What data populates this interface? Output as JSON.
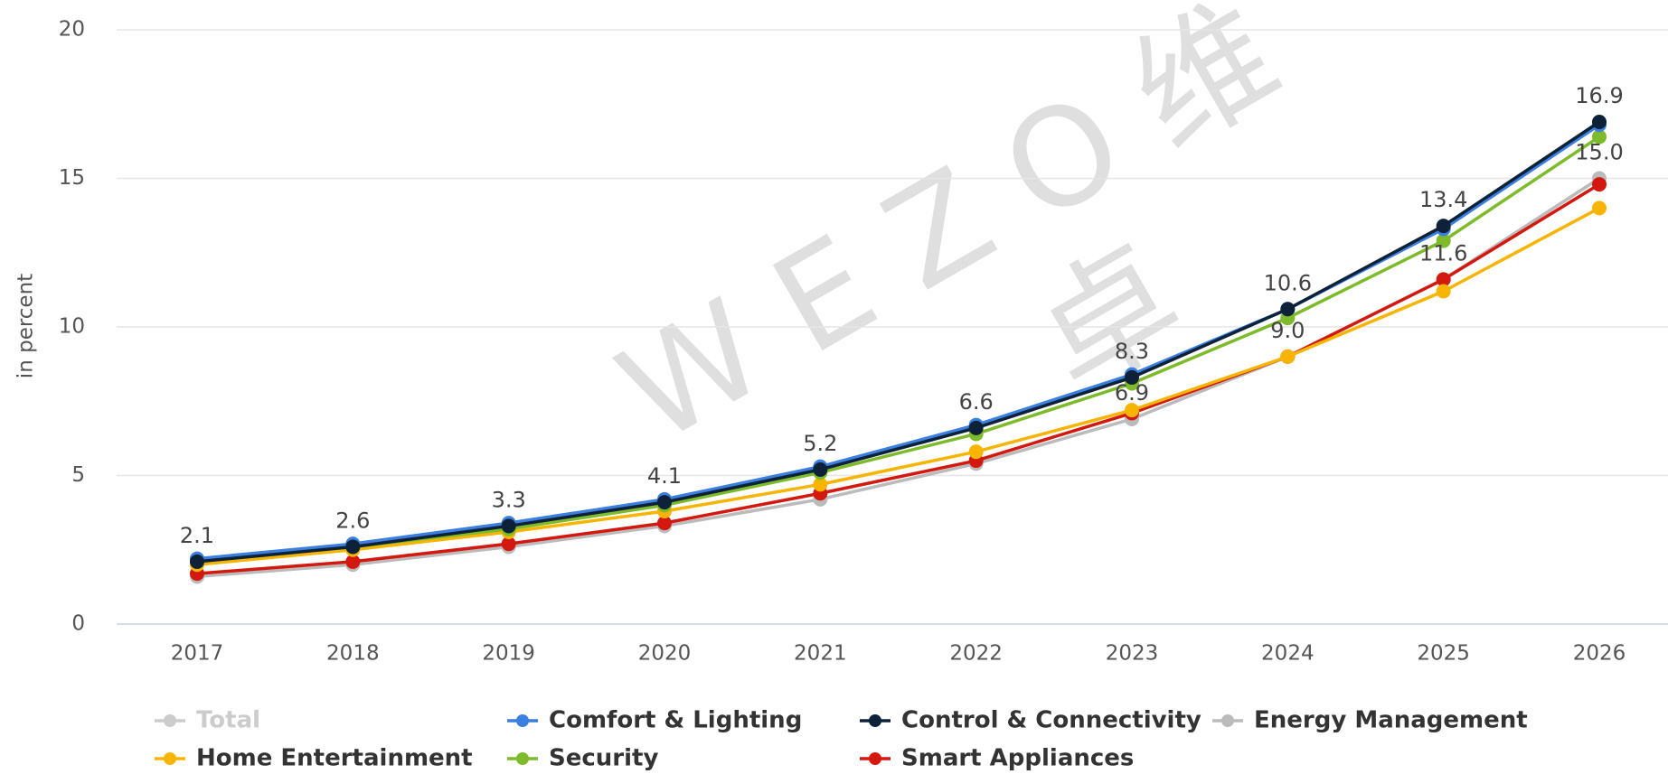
{
  "chart_data": {
    "type": "line",
    "y_axis_label": "in percent",
    "watermark": [
      "W E Z O 维",
      "卓"
    ],
    "categories": [
      "2017",
      "2018",
      "2019",
      "2020",
      "2021",
      "2022",
      "2023",
      "2024",
      "2025",
      "2026"
    ],
    "ylim": [
      0,
      20
    ],
    "yticks": [
      0,
      5,
      10,
      15,
      20
    ],
    "grid": true,
    "series": [
      {
        "name": "Total",
        "color": "#cccccc",
        "hidden": true,
        "values": [
          null,
          null,
          null,
          null,
          null,
          null,
          null,
          null,
          null,
          null
        ]
      },
      {
        "name": "Comfort & Lighting",
        "color": "#3b7fe0",
        "values": [
          2.2,
          2.7,
          3.4,
          4.2,
          5.3,
          6.7,
          8.4,
          10.6,
          13.3,
          16.8
        ]
      },
      {
        "name": "Control & Connectivity",
        "color": "#0d2238",
        "values": [
          2.1,
          2.6,
          3.3,
          4.1,
          5.2,
          6.6,
          8.3,
          10.6,
          13.4,
          16.9
        ],
        "value_labels": [
          "2.1",
          "2.6",
          "3.3",
          "4.1",
          "5.2",
          "6.6",
          "8.3",
          "10.6",
          "13.4",
          "16.9"
        ]
      },
      {
        "name": "Energy Management",
        "color": "#bbbbbb",
        "values": [
          1.6,
          2.0,
          2.6,
          3.3,
          4.2,
          5.4,
          6.9,
          9.0,
          11.6,
          15.0
        ],
        "value_labels": [
          null,
          null,
          null,
          null,
          null,
          null,
          "6.9",
          "9.0",
          "11.6",
          "15.0"
        ]
      },
      {
        "name": "Home Entertainment",
        "color": "#f7b400",
        "values": [
          2.0,
          2.5,
          3.1,
          3.8,
          4.7,
          5.8,
          7.2,
          9.0,
          11.2,
          14.0
        ]
      },
      {
        "name": "Security",
        "color": "#7dbb2a",
        "values": [
          2.1,
          2.6,
          3.2,
          4.0,
          5.1,
          6.4,
          8.1,
          10.3,
          12.9,
          16.4
        ]
      },
      {
        "name": "Smart Appliances",
        "color": "#d3190f",
        "values": [
          1.7,
          2.1,
          2.7,
          3.4,
          4.4,
          5.5,
          7.1,
          9.0,
          11.6,
          14.8
        ]
      }
    ]
  }
}
